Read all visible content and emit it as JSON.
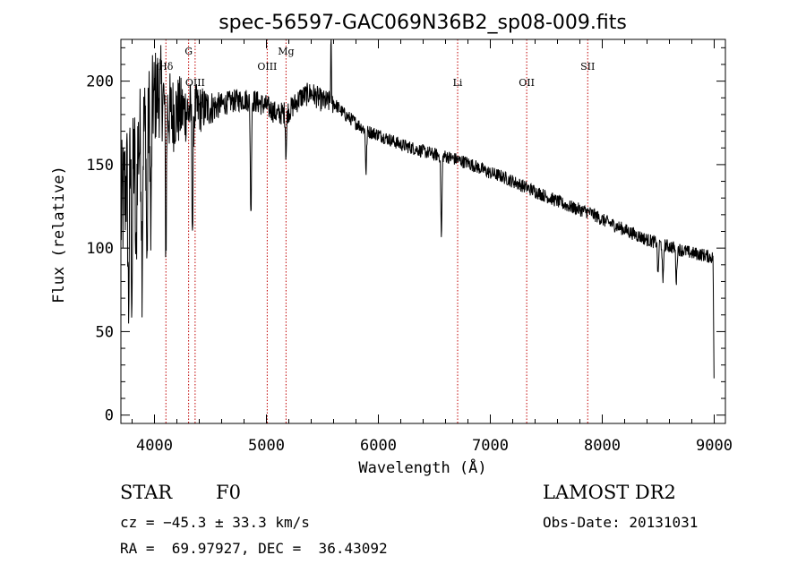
{
  "chart_data": {
    "type": "line",
    "title": "spec-56597-GAC069N36B2_sp08-009.fits",
    "xlabel": "Wavelength (Å)",
    "ylabel": "Flux (relative)",
    "xlim": [
      3700,
      9100
    ],
    "ylim": [
      -5,
      225
    ],
    "xticks": [
      "4000",
      "5000",
      "6000",
      "7000",
      "8000",
      "9000"
    ],
    "xtick_values": [
      4000,
      5000,
      6000,
      7000,
      8000,
      9000
    ],
    "yticks": [
      "0",
      "50",
      "100",
      "150",
      "200"
    ],
    "ytick_values": [
      0,
      50,
      100,
      150,
      200
    ],
    "continuum": {
      "x": [
        3700,
        3750,
        3800,
        3850,
        3900,
        3950,
        4000,
        4050,
        4100,
        4150,
        4200,
        4300,
        4400,
        4500,
        4600,
        4700,
        4800,
        4900,
        5000,
        5100,
        5200,
        5300,
        5400,
        5500,
        5600,
        5700,
        5800,
        5900,
        6000,
        6100,
        6200,
        6300,
        6400,
        6500,
        6600,
        6700,
        6800,
        6900,
        7000,
        7100,
        7200,
        7300,
        7400,
        7500,
        7600,
        7700,
        7800,
        7900,
        8000,
        8100,
        8200,
        8300,
        8400,
        8500,
        8600,
        8700,
        8800,
        8900,
        9000
      ],
      "y": [
        120,
        140,
        150,
        160,
        170,
        180,
        190,
        195,
        185,
        180,
        182,
        182,
        183,
        184,
        186,
        188,
        189,
        188,
        185,
        180,
        182,
        190,
        193,
        188,
        187,
        180,
        175,
        170,
        168,
        165,
        162,
        160,
        158,
        156,
        155,
        153,
        151,
        148,
        145,
        143,
        140,
        137,
        134,
        131,
        128,
        125,
        123,
        121,
        117,
        114,
        111,
        108,
        105,
        103,
        101,
        99,
        97,
        96,
        94
      ]
    },
    "noise_amplitude_blue": 35,
    "noise_amplitude_red": 4,
    "absorption_features": [
      {
        "x": 3768,
        "depth": 80
      },
      {
        "x": 3798,
        "depth": 70
      },
      {
        "x": 3835,
        "depth": 75
      },
      {
        "x": 3889,
        "depth": 75
      },
      {
        "x": 3933,
        "depth": 90
      },
      {
        "x": 3968,
        "depth": 80
      },
      {
        "x": 4102,
        "depth": 85
      },
      {
        "x": 4340,
        "depth": 70
      },
      {
        "x": 4861,
        "depth": 70
      },
      {
        "x": 5175,
        "depth": 25
      },
      {
        "x": 5890,
        "depth": 25
      },
      {
        "x": 6563,
        "depth": 50
      },
      {
        "x": 8498,
        "depth": 20
      },
      {
        "x": 8542,
        "depth": 25
      },
      {
        "x": 8662,
        "depth": 20
      }
    ],
    "emission_features": [
      {
        "x": 5577,
        "height": 40
      }
    ],
    "line_markers": [
      {
        "label": "Hδ",
        "x": 4102,
        "row": 2
      },
      {
        "label": "G",
        "x": 4305,
        "row": 1
      },
      {
        "label": "OIII",
        "x": 4363,
        "row": 3
      },
      {
        "label": "OIII",
        "x": 5007,
        "row": 2
      },
      {
        "label": "Mg",
        "x": 5175,
        "row": 1
      },
      {
        "label": "Li",
        "x": 6708,
        "row": 3
      },
      {
        "label": "OII",
        "x": 7325,
        "row": 3
      },
      {
        "label": "SII",
        "x": 7870,
        "row": 2
      }
    ],
    "line_color": "#000000",
    "marker_color": "#c00000"
  },
  "info": {
    "object_type": "STAR",
    "subclass": "F0",
    "survey": "LAMOST DR2",
    "redshift": "cz = −45.3 ± 33.3 km/s",
    "obs_date": "Obs-Date: 20131031",
    "coords": "RA =  69.97927, DEC =  36.43092"
  }
}
